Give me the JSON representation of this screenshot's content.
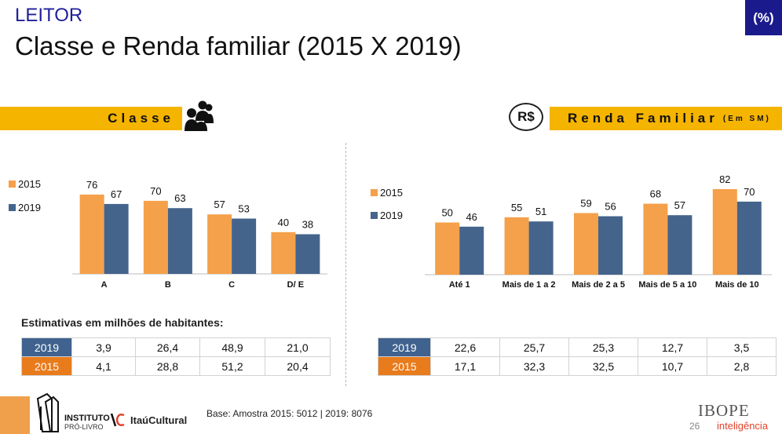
{
  "header": {
    "section": "LEITOR",
    "title": "Classe e Renda familiar (2015 X 2019)",
    "unit_badge": "(%)"
  },
  "classe_band": {
    "label": "Classe",
    "icon": "people-icon"
  },
  "renda_band": {
    "label": "Renda Familiar",
    "sublabel": "(Em SM)",
    "icon": "rs-currency-icon",
    "icon_text": "R$"
  },
  "colors": {
    "s2015": "#f5a04a",
    "s2019": "#44648c",
    "gold": "#f5b400",
    "row2019": "#40628f",
    "row2015": "#e87b1c"
  },
  "chart_data": [
    {
      "type": "bar",
      "categories": [
        "A",
        "B",
        "C",
        "D/ E"
      ],
      "series": [
        {
          "name": "2015",
          "values": [
            76,
            70,
            57,
            40
          ]
        },
        {
          "name": "2019",
          "values": [
            67,
            63,
            53,
            38
          ]
        }
      ],
      "title": "Classe",
      "ylim": [
        0,
        100
      ],
      "grid": false,
      "legend": "left"
    },
    {
      "type": "bar",
      "categories": [
        "Até 1",
        "Mais de 1 a 2",
        "Mais de 2 a 5",
        "Mais de 5 a 10",
        "Mais de 10"
      ],
      "series": [
        {
          "name": "2015",
          "values": [
            50,
            55,
            59,
            68,
            82
          ]
        },
        {
          "name": "2019",
          "values": [
            46,
            51,
            56,
            57,
            70
          ]
        }
      ],
      "title": "Renda Familiar (Em SM)",
      "ylim": [
        0,
        100
      ],
      "grid": false,
      "legend": "left"
    }
  ],
  "estimates": {
    "label": "Estimativas em milhões de habitantes:",
    "classe_rows": [
      {
        "year": "2019",
        "values": [
          "3,9",
          "26,4",
          "48,9",
          "21,0"
        ]
      },
      {
        "year": "2015",
        "values": [
          "4,1",
          "28,8",
          "51,2",
          "20,4"
        ]
      }
    ],
    "renda_rows": [
      {
        "year": "2019",
        "values": [
          "22,6",
          "25,7",
          "25,3",
          "12,7",
          "3,5"
        ]
      },
      {
        "year": "2015",
        "values": [
          "17,1",
          "32,3",
          "32,5",
          "10,7",
          "2,8"
        ]
      }
    ]
  },
  "footer": {
    "base": "Base: Amostra 2015: 5012 | 2019: 8076",
    "page": "26",
    "brand": "IBOPE",
    "brand_sub": "inteligência",
    "inst_line1": "INSTITUTO",
    "inst_line2": "PRÓ-LIVRO",
    "itau": "ItaúCultural"
  }
}
